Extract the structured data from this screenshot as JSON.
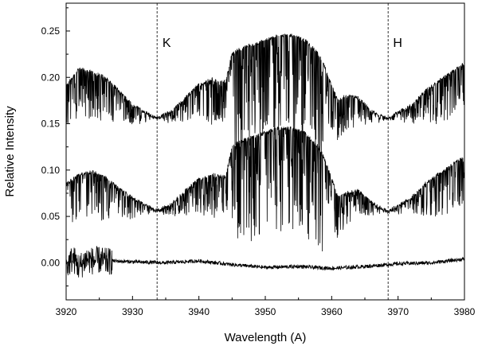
{
  "chart_data": {
    "type": "line",
    "title": "",
    "xlabel": "Wavelength (A)",
    "ylabel": "Relative Intensity",
    "xlim": [
      3920,
      3980
    ],
    "ylim": [
      -0.04,
      0.28
    ],
    "x_ticks": [
      3920,
      3930,
      3940,
      3950,
      3960,
      3970,
      3980
    ],
    "y_ticks": [
      0.0,
      0.05,
      0.1,
      0.15,
      0.2,
      0.25
    ],
    "x_tick_labels": [
      "3920",
      "3930",
      "3940",
      "3950",
      "3960",
      "3970",
      "3980"
    ],
    "y_tick_labels": [
      "0.00",
      "0.05",
      "0.10",
      "0.15",
      "0.20",
      "0.25"
    ],
    "grid": false,
    "legend": "none",
    "line_color": "#000000",
    "reference_lines": [
      {
        "label": "K",
        "x": 3933.7
      },
      {
        "label": "H",
        "x": 3968.5
      }
    ],
    "series": [
      {
        "x": [
          3920,
          3922,
          3924,
          3926,
          3928,
          3930,
          3932,
          3933.7,
          3936,
          3938,
          3940,
          3942,
          3944,
          3945,
          3946,
          3948,
          3950,
          3952,
          3954,
          3956,
          3958,
          3959,
          3960,
          3961,
          3962,
          3964,
          3966,
          3968.5,
          3970,
          3972,
          3974,
          3976,
          3978,
          3980
        ],
        "values": [
          0.19,
          0.21,
          0.205,
          0.2,
          0.185,
          0.17,
          0.162,
          0.156,
          0.164,
          0.178,
          0.192,
          0.198,
          0.195,
          0.225,
          0.23,
          0.235,
          0.24,
          0.245,
          0.245,
          0.24,
          0.225,
          0.21,
          0.19,
          0.175,
          0.18,
          0.178,
          0.163,
          0.155,
          0.162,
          0.17,
          0.185,
          0.195,
          0.205,
          0.215
        ]
      },
      {
        "x": [
          3920,
          3922,
          3924,
          3926,
          3928,
          3930,
          3932,
          3933.7,
          3936,
          3938,
          3940,
          3942,
          3944,
          3945,
          3946,
          3948,
          3950,
          3952,
          3954,
          3956,
          3958,
          3959,
          3960,
          3961,
          3962,
          3964,
          3966,
          3968.5,
          3970,
          3972,
          3974,
          3976,
          3978,
          3980
        ],
        "values": [
          0.085,
          0.095,
          0.098,
          0.092,
          0.08,
          0.07,
          0.062,
          0.056,
          0.064,
          0.078,
          0.09,
          0.095,
          0.092,
          0.125,
          0.13,
          0.135,
          0.14,
          0.145,
          0.145,
          0.14,
          0.125,
          0.11,
          0.09,
          0.07,
          0.075,
          0.078,
          0.065,
          0.055,
          0.062,
          0.07,
          0.085,
          0.095,
          0.105,
          0.115
        ]
      },
      {
        "x": [
          3920,
          3921,
          3922,
          3923,
          3924,
          3925,
          3926,
          3927,
          3930,
          3935,
          3940,
          3945,
          3950,
          3955,
          3960,
          3965,
          3970,
          3975,
          3980
        ],
        "values": [
          -0.005,
          0.005,
          -0.005,
          0.004,
          0.002,
          0.003,
          0.001,
          0.002,
          0.001,
          0.0,
          0.002,
          -0.002,
          -0.005,
          -0.004,
          -0.006,
          -0.004,
          -0.001,
          0.0,
          0.004
        ]
      }
    ]
  }
}
